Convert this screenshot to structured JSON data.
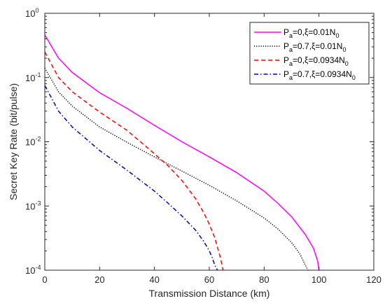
{
  "chart_data": {
    "type": "line",
    "title": "",
    "xlabel": "Transmission Distance (km)",
    "ylabel": "Secret Key Rate (bit/pulse)",
    "xlim": [
      0,
      120
    ],
    "ylim": [
      0.0001,
      1
    ],
    "yscale": "log",
    "grid": false,
    "legend_position": "top-right",
    "x_ticks": [
      {
        "value": 0,
        "label": "0"
      },
      {
        "value": 20,
        "label": "20"
      },
      {
        "value": 40,
        "label": "40"
      },
      {
        "value": 60,
        "label": "60"
      },
      {
        "value": 80,
        "label": "80"
      },
      {
        "value": 100,
        "label": "100"
      },
      {
        "value": 120,
        "label": "120"
      }
    ],
    "y_ticks": [
      {
        "value": 0.0001,
        "base": "10",
        "exp": "-4"
      },
      {
        "value": 0.001,
        "base": "10",
        "exp": "-3"
      },
      {
        "value": 0.01,
        "base": "10",
        "exp": "-2"
      },
      {
        "value": 0.1,
        "base": "10",
        "exp": "-1"
      },
      {
        "value": 1,
        "base": "10",
        "exp": "0"
      }
    ],
    "series": [
      {
        "label_parts": [
          {
            "t": "P"
          },
          {
            "t": "a",
            "sub": true
          },
          {
            "t": "=0,ξ=0.01N"
          },
          {
            "t": "0",
            "sub": true
          }
        ],
        "color": "#ff00ff",
        "dash": "solid",
        "x": [
          0,
          5,
          10,
          20,
          30,
          40,
          50,
          60,
          70,
          80,
          85,
          90,
          95,
          98,
          99.5,
          100
        ],
        "y": [
          0.46,
          0.2,
          0.12,
          0.058,
          0.033,
          0.018,
          0.01,
          0.0058,
          0.0033,
          0.0017,
          0.0011,
          0.00068,
          0.00036,
          0.00022,
          0.00014,
          0.0001
        ]
      },
      {
        "label_parts": [
          {
            "t": "P"
          },
          {
            "t": "a",
            "sub": true
          },
          {
            "t": "=0.7,ξ=0.01N"
          },
          {
            "t": "0",
            "sub": true
          }
        ],
        "color": "#000000",
        "dash": "dotted",
        "x": [
          0,
          5,
          10,
          20,
          30,
          40,
          50,
          60,
          70,
          80,
          85,
          90,
          93,
          95,
          96
        ],
        "y": [
          0.14,
          0.06,
          0.036,
          0.017,
          0.0098,
          0.0058,
          0.0035,
          0.0021,
          0.0012,
          0.00065,
          0.00044,
          0.00027,
          0.00018,
          0.00012,
          0.0001
        ]
      },
      {
        "label_parts": [
          {
            "t": "P"
          },
          {
            "t": "a",
            "sub": true
          },
          {
            "t": "=0,ξ=0.0934N"
          },
          {
            "t": "0",
            "sub": true
          }
        ],
        "color": "#ff0000",
        "dash": "dashed",
        "x": [
          0,
          5,
          10,
          20,
          30,
          40,
          45,
          50,
          55,
          58,
          60,
          62,
          64,
          65
        ],
        "y": [
          0.25,
          0.1,
          0.06,
          0.029,
          0.015,
          0.0065,
          0.0042,
          0.0025,
          0.0013,
          0.00078,
          0.00052,
          0.00032,
          0.00016,
          0.0001
        ]
      },
      {
        "label_parts": [
          {
            "t": "P"
          },
          {
            "t": "a",
            "sub": true
          },
          {
            "t": "=0.7,ξ=0.0934N"
          },
          {
            "t": "0",
            "sub": true
          }
        ],
        "color": "#0000cc",
        "dash": "dashdot",
        "x": [
          0,
          5,
          10,
          20,
          30,
          40,
          45,
          50,
          55,
          58,
          60,
          61,
          62,
          63
        ],
        "y": [
          0.075,
          0.03,
          0.017,
          0.0073,
          0.0036,
          0.0017,
          0.0011,
          0.0007,
          0.00042,
          0.00028,
          0.0002,
          0.00016,
          0.00012,
          0.0001
        ]
      }
    ]
  }
}
